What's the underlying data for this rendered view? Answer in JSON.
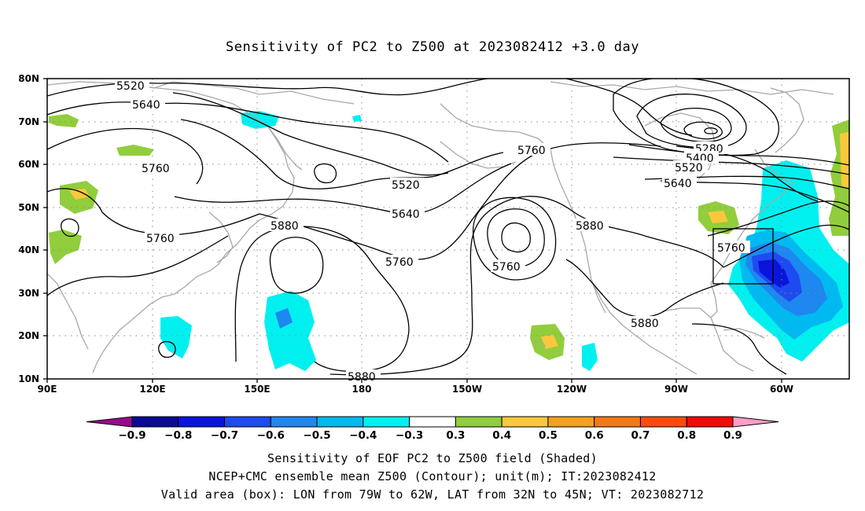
{
  "title": "Sensitivity of PC2 to Z500 at 2023082412 +3.0 day",
  "lat_labels": [
    "80N",
    "70N",
    "60N",
    "50N",
    "40N",
    "30N",
    "20N",
    "10N"
  ],
  "lon_labels": [
    "90E",
    "120E",
    "150E",
    "180",
    "150W",
    "120W",
    "90W",
    "60W"
  ],
  "contour_labels": [
    {
      "id": "5520a",
      "text": "5520"
    },
    {
      "id": "5640a",
      "text": "5640"
    },
    {
      "id": "5760a",
      "text": "5760"
    },
    {
      "id": "5760b",
      "text": "5760"
    },
    {
      "id": "5880a",
      "text": "5880"
    },
    {
      "id": "5520b",
      "text": "5520"
    },
    {
      "id": "5640b",
      "text": "5640"
    },
    {
      "id": "5760c",
      "text": "5760"
    },
    {
      "id": "5760d",
      "text": "5760"
    },
    {
      "id": "5760e",
      "text": "5760"
    },
    {
      "id": "5880b",
      "text": "5880"
    },
    {
      "id": "5880c",
      "text": "5880"
    },
    {
      "id": "5880d",
      "text": "5880"
    },
    {
      "id": "5280",
      "text": "5280"
    },
    {
      "id": "5400",
      "text": "5400"
    },
    {
      "id": "5520c",
      "text": "5520"
    },
    {
      "id": "5640c",
      "text": "5640"
    },
    {
      "id": "5760f",
      "text": "5760"
    }
  ],
  "colorbar": {
    "colors": [
      "#9b0a8c",
      "#0a0a96",
      "#0a14dc",
      "#1e4bf0",
      "#1e87f0",
      "#00b9f0",
      "#00f0f0",
      "#ffffff",
      "#91cd3c",
      "#fac83c",
      "#f5a01e",
      "#f57814",
      "#ff4b0a",
      "#f00a0a",
      "#ff9ec8"
    ],
    "labels": [
      "−0.9",
      "−0.8",
      "−0.7",
      "−0.6",
      "−0.5",
      "−0.4",
      "−0.3",
      "0.3",
      "0.4",
      "0.5",
      "0.6",
      "0.7",
      "0.8",
      "0.9"
    ]
  },
  "captions": {
    "line1": "Sensitivity of EOF PC2 to Z500 field (Shaded)",
    "line2": "NCEP+CMC ensemble mean Z500 (Contour); unit(m); IT:2023082412",
    "line3": "Valid area (box): LON from 79W to 62W, LAT from 32N to 45N; VT: 2023082712"
  }
}
